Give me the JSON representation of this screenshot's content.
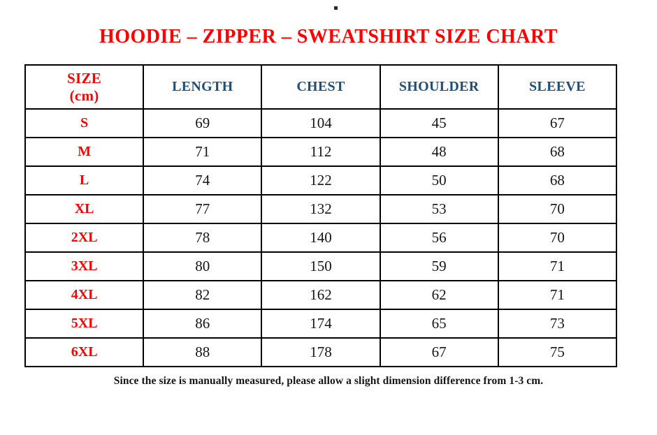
{
  "page": {
    "title": "HOODIE – ZIPPER – SWEATSHIRT SIZE CHART",
    "footnote": "Since the size is manually measured, please allow a slight dimension difference from 1-3 cm."
  },
  "colors": {
    "title_red": "#fe0000",
    "size_label_red": "#fe0000",
    "header_blue": "#1f4e79",
    "value_black": "#151515",
    "border_black": "#000000",
    "background": "#ffffff"
  },
  "table_header": {
    "size_line1": "SIZE",
    "size_line2": "(cm)",
    "cols": [
      "LENGTH",
      "CHEST",
      "SHOULDER",
      "SLEEVE"
    ]
  },
  "chart_data": {
    "type": "table",
    "title": "HOODIE – ZIPPER – SWEATSHIRT SIZE CHART",
    "units": "cm",
    "columns": [
      "SIZE (cm)",
      "LENGTH",
      "CHEST",
      "SHOULDER",
      "SLEEVE"
    ],
    "rows": [
      [
        "S",
        69,
        104,
        45,
        67
      ],
      [
        "M",
        71,
        112,
        48,
        68
      ],
      [
        "L",
        74,
        122,
        50,
        68
      ],
      [
        "XL",
        77,
        132,
        53,
        70
      ],
      [
        "2XL",
        78,
        140,
        56,
        70
      ],
      [
        "3XL",
        80,
        150,
        59,
        71
      ],
      [
        "4XL",
        82,
        162,
        62,
        71
      ],
      [
        "5XL",
        86,
        174,
        65,
        73
      ],
      [
        "6XL",
        88,
        178,
        67,
        75
      ]
    ],
    "note": "Since the size is manually measured, please allow a slight dimension difference from 1-3 cm."
  }
}
